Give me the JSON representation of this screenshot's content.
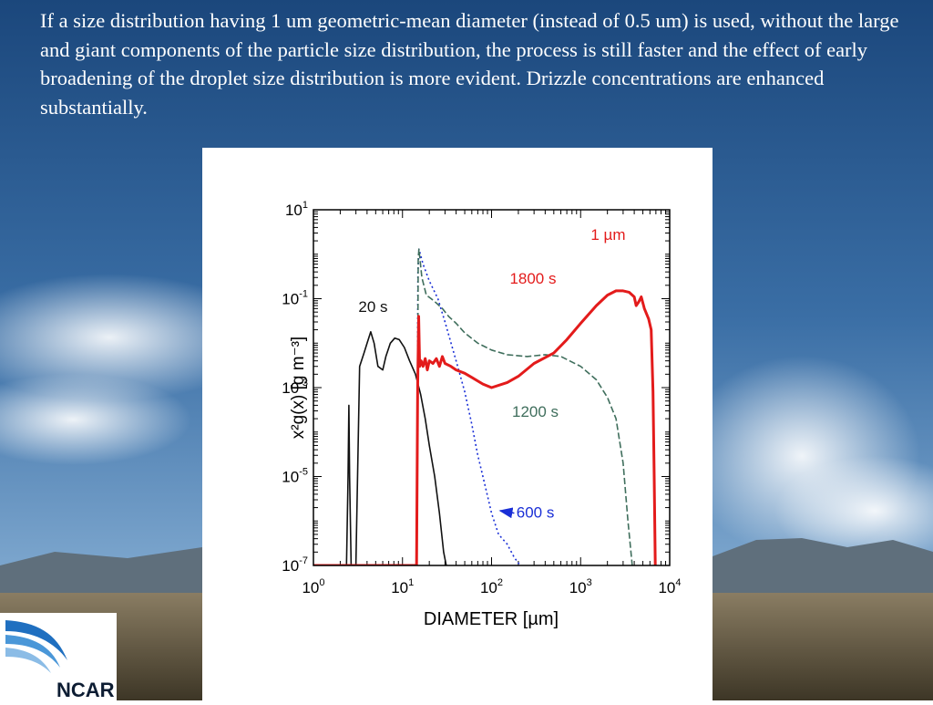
{
  "slide": {
    "caption": "If a size distribution having 1 um geometric-mean diameter (instead of 0.5 um) is used, without the large and giant components of the particle size distribution, the process is still faster and the effect of early broadening of the droplet size distribution is more evident. Drizzle concentrations are enhanced substantially."
  },
  "logo": {
    "text": "NCAR"
  },
  "colors": {
    "red_series": "#e31b1b",
    "teal_series": "#3f6e5c",
    "blue_series": "#1a2fd6",
    "black_series": "#111111"
  },
  "chart_data": {
    "type": "line",
    "annotation_title": "1 µm",
    "xlabel": "DIAMETER [µm]",
    "ylabel": "x²g(x) [g m⁻³]",
    "x_scale": "log",
    "y_scale": "log",
    "xlim": [
      1,
      10000
    ],
    "ylim": [
      1e-07,
      10
    ],
    "x_ticks": [
      {
        "value": 1,
        "base": "10",
        "exp": "0"
      },
      {
        "value": 10,
        "base": "10",
        "exp": "1"
      },
      {
        "value": 100,
        "base": "10",
        "exp": "2"
      },
      {
        "value": 1000,
        "base": "10",
        "exp": "3"
      },
      {
        "value": 10000,
        "base": "10",
        "exp": "4"
      }
    ],
    "y_ticks": [
      {
        "value": 10,
        "base": "10",
        "exp": "1"
      },
      {
        "value": 0.1,
        "base": "10",
        "exp": "-1"
      },
      {
        "value": 0.001,
        "base": "10",
        "exp": "-3"
      },
      {
        "value": 1e-05,
        "base": "10",
        "exp": "-5"
      },
      {
        "value": 1e-07,
        "base": "10",
        "exp": "-7"
      }
    ],
    "series": [
      {
        "name": "20 s",
        "color": "#111111",
        "dash": "solid",
        "points": [
          [
            2.35,
            1e-07
          ],
          [
            2.45,
            1e-05
          ],
          [
            2.5,
            0.0004
          ],
          [
            2.55,
            1e-05
          ],
          [
            2.65,
            1e-07
          ],
          [
            3.0,
            1e-07
          ],
          [
            3.3,
            0.003
          ],
          [
            3.7,
            0.006
          ],
          [
            4.0,
            0.01
          ],
          [
            4.4,
            0.018
          ],
          [
            4.8,
            0.01
          ],
          [
            5.3,
            0.003
          ],
          [
            6.0,
            0.0025
          ],
          [
            6.5,
            0.005
          ],
          [
            7.3,
            0.01
          ],
          [
            8.2,
            0.013
          ],
          [
            9.2,
            0.012
          ],
          [
            10.5,
            0.008
          ],
          [
            12,
            0.004
          ],
          [
            14,
            0.002
          ],
          [
            16,
            0.0007
          ],
          [
            18,
            0.0002
          ],
          [
            20,
            5e-05
          ],
          [
            23,
            1e-05
          ],
          [
            26,
            1.5e-06
          ],
          [
            29,
            2e-07
          ],
          [
            31,
            1e-07
          ]
        ]
      },
      {
        "name": "600 s",
        "color": "#1a2fd6",
        "dash": "dotted",
        "points": [
          [
            14.5,
            1e-07
          ],
          [
            14.9,
            0.4
          ],
          [
            15.3,
            1.3
          ],
          [
            17,
            0.6
          ],
          [
            20,
            0.25
          ],
          [
            25,
            0.1
          ],
          [
            30,
            0.03
          ],
          [
            40,
            0.004
          ],
          [
            50,
            0.0008
          ],
          [
            60,
            0.00015
          ],
          [
            70,
            3e-05
          ],
          [
            85,
            6e-06
          ],
          [
            100,
            1.5e-06
          ],
          [
            120,
            5e-07
          ],
          [
            150,
            3e-07
          ],
          [
            180,
            1.5e-07
          ],
          [
            210,
            1e-07
          ]
        ]
      },
      {
        "name": "1200 s",
        "color": "#3f6e5c",
        "dash": "dashed",
        "points": [
          [
            14.5,
            1e-07
          ],
          [
            15.0,
            0.8
          ],
          [
            15.3,
            1.3
          ],
          [
            16.5,
            0.3
          ],
          [
            18.5,
            0.12
          ],
          [
            21,
            0.1
          ],
          [
            24,
            0.08
          ],
          [
            28,
            0.06
          ],
          [
            33,
            0.04
          ],
          [
            40,
            0.028
          ],
          [
            50,
            0.017
          ],
          [
            70,
            0.01
          ],
          [
            100,
            0.007
          ],
          [
            150,
            0.0055
          ],
          [
            250,
            0.005
          ],
          [
            400,
            0.0055
          ],
          [
            600,
            0.005
          ],
          [
            1000,
            0.003
          ],
          [
            1500,
            0.0015
          ],
          [
            2000,
            0.0006
          ],
          [
            2500,
            0.0002
          ],
          [
            3000,
            2e-05
          ],
          [
            3400,
            1e-06
          ],
          [
            3800,
            1e-07
          ]
        ]
      },
      {
        "name": "1800 s",
        "color": "#e31b1b",
        "dash": "solid",
        "points": [
          [
            1,
            1e-07
          ],
          [
            14.4,
            1e-07
          ],
          [
            14.8,
            0.001
          ],
          [
            15.2,
            0.04
          ],
          [
            15.6,
            0.003
          ],
          [
            16.2,
            0.004
          ],
          [
            17,
            0.003
          ],
          [
            18,
            0.0045
          ],
          [
            19,
            0.0025
          ],
          [
            20,
            0.004
          ],
          [
            22,
            0.0035
          ],
          [
            24,
            0.0045
          ],
          [
            26,
            0.003
          ],
          [
            28,
            0.005
          ],
          [
            30,
            0.0035
          ],
          [
            35,
            0.003
          ],
          [
            40,
            0.0025
          ],
          [
            50,
            0.0021
          ],
          [
            60,
            0.0017
          ],
          [
            80,
            0.0012
          ],
          [
            100,
            0.001
          ],
          [
            150,
            0.0013
          ],
          [
            200,
            0.0018
          ],
          [
            300,
            0.0035
          ],
          [
            500,
            0.006
          ],
          [
            700,
            0.012
          ],
          [
            1000,
            0.028
          ],
          [
            1500,
            0.07
          ],
          [
            2000,
            0.12
          ],
          [
            2500,
            0.15
          ],
          [
            3000,
            0.15
          ],
          [
            3500,
            0.14
          ],
          [
            4000,
            0.11
          ],
          [
            4200,
            0.07
          ],
          [
            4500,
            0.085
          ],
          [
            4800,
            0.11
          ],
          [
            5200,
            0.06
          ],
          [
            5800,
            0.035
          ],
          [
            6200,
            0.02
          ],
          [
            6500,
            0.0008
          ],
          [
            6700,
            1e-05
          ],
          [
            6900,
            1e-07
          ]
        ]
      }
    ],
    "labels": [
      {
        "key": "title",
        "text": "1 µm",
        "x": 1300,
        "y": 2.1,
        "color": "#e31b1b",
        "anchor": "start"
      },
      {
        "key": "s1800",
        "text": "1800 s",
        "x": 160,
        "y": 0.22,
        "color": "#e31b1b",
        "anchor": "start"
      },
      {
        "key": "s20",
        "text": "20 s",
        "x": 3.2,
        "y": 0.05,
        "color": "#111111",
        "anchor": "start"
      },
      {
        "key": "s1200",
        "text": "1200 s",
        "x": 170,
        "y": 0.00022,
        "color": "#3f6e5c",
        "anchor": "start"
      },
      {
        "key": "s600",
        "text": "600 s",
        "x": 190,
        "y": 1.2e-06,
        "color": "#1a2fd6",
        "anchor": "start"
      }
    ],
    "arrow": {
      "from": [
        180,
        1.5e-06
      ],
      "to": [
        125,
        1.7e-06
      ],
      "color": "#1a2fd6"
    }
  }
}
